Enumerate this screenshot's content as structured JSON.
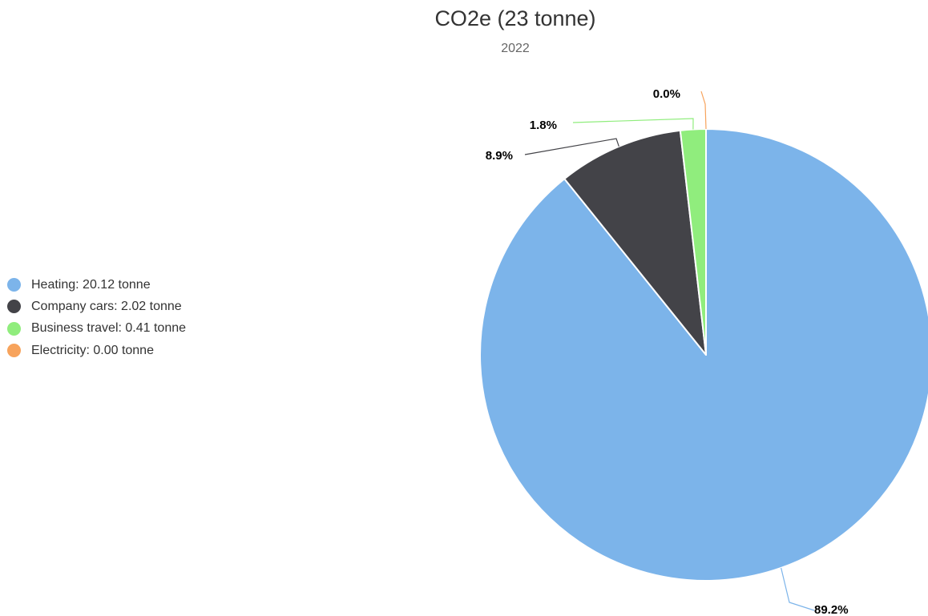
{
  "chart_data": {
    "type": "pie",
    "title": "CO2e (23 tonne)",
    "subtitle": "2022",
    "unit": "tonne",
    "legend_position": "left",
    "categories": [
      "Heating",
      "Company cars",
      "Business travel",
      "Electricity"
    ],
    "values": [
      20.12,
      2.02,
      0.41,
      0.0
    ],
    "value_labels": [
      "20.12",
      "2.02",
      "0.41",
      "0.00"
    ],
    "percent_labels": [
      "89.2%",
      "8.9%",
      "1.8%",
      "0.0%"
    ],
    "colors": [
      "#7cb4ea",
      "#434348",
      "#90ed7d",
      "#f7a35c"
    ]
  }
}
